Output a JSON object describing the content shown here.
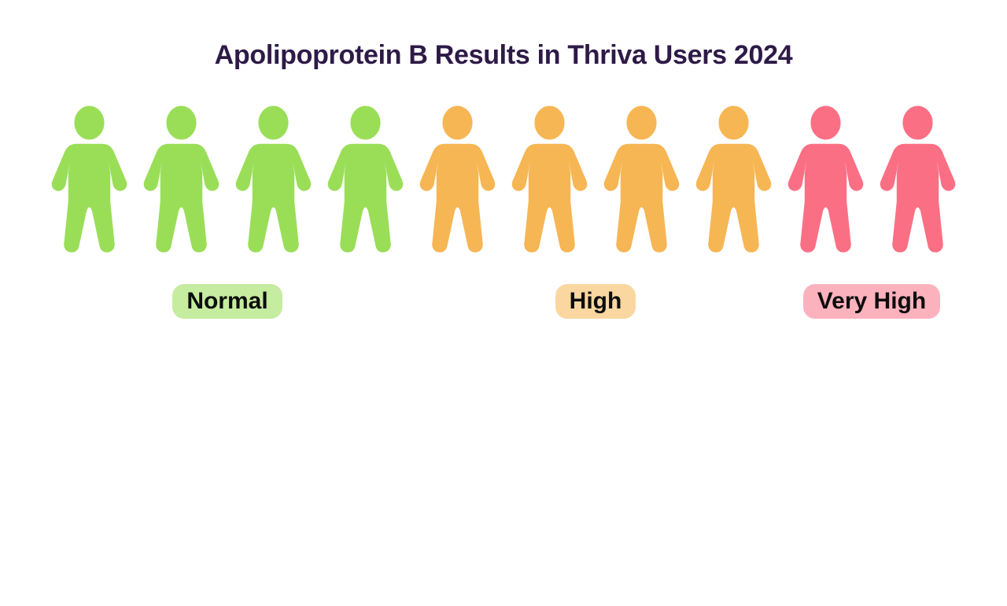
{
  "title": "Apolipoprotein B Results in Thriva Users 2024",
  "title_color": "#2e1a47",
  "background": "#ffffff",
  "groups": [
    {
      "label": "Normal",
      "count": 4,
      "icon_color": "#9ade58",
      "label_bg": "#c5ec9f"
    },
    {
      "label": "High",
      "count": 4,
      "icon_color": "#f6b654",
      "label_bg": "#fad7a0"
    },
    {
      "label": "Very High",
      "count": 2,
      "icon_color": "#fb6f84",
      "label_bg": "#fbb2bd"
    }
  ],
  "chart_data": {
    "type": "pictograph",
    "title": "Apolipoprotein B Results in Thriva Users 2024",
    "categories": [
      "Normal",
      "High",
      "Very High"
    ],
    "values": [
      4,
      4,
      2
    ],
    "values_unit": "person icons (10 icons total)",
    "series_colors": [
      "#9ade58",
      "#f6b654",
      "#fb6f84"
    ],
    "label_backgrounds": [
      "#c5ec9f",
      "#fad7a0",
      "#fbb2bd"
    ],
    "legend": [
      "Normal",
      "High",
      "Very High"
    ],
    "legend_position": "pill label centered below each icon group",
    "grid": false,
    "axes": false
  }
}
